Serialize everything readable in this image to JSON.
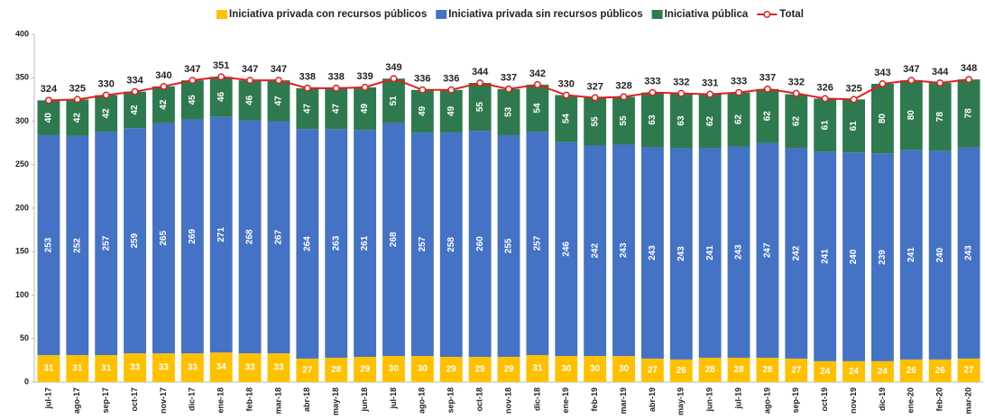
{
  "chart_data": {
    "type": "bar",
    "stacked": true,
    "categories": [
      "jul-17",
      "ago-17",
      "sep-17",
      "oct-17",
      "nov-17",
      "dic-17",
      "ene-18",
      "feb-18",
      "mar-18",
      "abr-18",
      "may-18",
      "jun-18",
      "jul-18",
      "ago-18",
      "sep-18",
      "oct-18",
      "nov-18",
      "dic-18",
      "ene-19",
      "feb-19",
      "mar-19",
      "abr-19",
      "may-19",
      "jun-19",
      "jul-19",
      "ago-19",
      "sep-19",
      "oct-19",
      "nov-19",
      "dic-19",
      "ene-20",
      "feb-20",
      "mar-20"
    ],
    "series": [
      {
        "name": "Iniciativa privada con recursos públicos",
        "color": "#ffc000",
        "values": [
          31,
          31,
          31,
          33,
          33,
          33,
          34,
          33,
          33,
          27,
          28,
          29,
          30,
          30,
          29,
          29,
          29,
          31,
          30,
          30,
          30,
          27,
          26,
          28,
          28,
          28,
          27,
          24,
          24,
          24,
          26,
          26,
          27
        ]
      },
      {
        "name": "Iniciativa privada sin recursos públicos",
        "color": "#4472c4",
        "values": [
          253,
          252,
          257,
          259,
          265,
          269,
          271,
          268,
          267,
          264,
          263,
          261,
          268,
          257,
          258,
          260,
          255,
          257,
          246,
          242,
          243,
          243,
          243,
          241,
          243,
          247,
          242,
          241,
          240,
          239,
          241,
          240,
          243
        ]
      },
      {
        "name": "Iniciativa pública",
        "color": "#2e7a4e",
        "values": [
          40,
          42,
          42,
          42,
          42,
          45,
          46,
          46,
          47,
          47,
          47,
          49,
          51,
          49,
          49,
          55,
          53,
          54,
          54,
          55,
          55,
          63,
          63,
          62,
          62,
          62,
          62,
          61,
          61,
          80,
          80,
          78,
          78
        ]
      },
      {
        "name": "Total",
        "type": "line",
        "color": "#e02020",
        "values": [
          324,
          325,
          330,
          334,
          340,
          347,
          351,
          347,
          347,
          338,
          338,
          339,
          349,
          336,
          336,
          344,
          337,
          342,
          330,
          327,
          328,
          333,
          332,
          331,
          333,
          337,
          332,
          326,
          325,
          343,
          347,
          344,
          348
        ]
      }
    ],
    "ylim": [
      0,
      400
    ],
    "yticks": [
      0,
      50,
      100,
      150,
      200,
      250,
      300,
      350,
      400
    ],
    "grid": false,
    "legend": "top"
  }
}
